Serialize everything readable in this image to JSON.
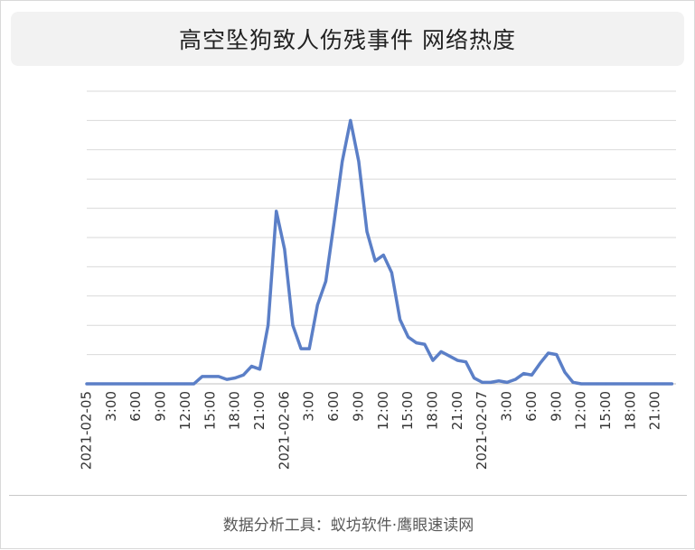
{
  "title": "高空坠狗致人伤残事件 网络热度",
  "footer": "数据分析工具：蚁坊软件·鹰眼速读网",
  "chart_data": {
    "type": "line",
    "title": "高空坠狗致人伤残事件 网络热度",
    "xlabel": "",
    "ylabel": "",
    "x_tick_labels": [
      "2021-02-05",
      "3:00",
      "6:00",
      "9:00",
      "12:00",
      "15:00",
      "18:00",
      "21:00",
      "2021-02-06",
      "3:00",
      "6:00",
      "9:00",
      "12:00",
      "15:00",
      "18:00",
      "21:00",
      "2021-02-07",
      "3:00",
      "6:00",
      "9:00",
      "12:00",
      "15:00",
      "18:00",
      "21:00"
    ],
    "x_tick_hours": [
      0,
      3,
      6,
      9,
      12,
      15,
      18,
      21,
      24,
      27,
      30,
      33,
      36,
      39,
      42,
      45,
      48,
      51,
      54,
      57,
      60,
      63,
      66,
      69
    ],
    "ylim": [
      0,
      10
    ],
    "y_gridlines": 10,
    "y_axis_labels_shown": false,
    "grid": true,
    "legend": "none",
    "line_color": "#5b7fc7",
    "series": [
      {
        "values": [
          [
            0,
            0
          ],
          [
            1,
            0
          ],
          [
            2,
            0
          ],
          [
            3,
            0
          ],
          [
            4,
            0
          ],
          [
            5,
            0
          ],
          [
            6,
            0
          ],
          [
            7,
            0
          ],
          [
            8,
            0
          ],
          [
            9,
            0
          ],
          [
            10,
            0
          ],
          [
            11,
            0
          ],
          [
            12,
            0
          ],
          [
            13,
            0
          ],
          [
            14,
            0.25
          ],
          [
            15,
            0.25
          ],
          [
            16,
            0.25
          ],
          [
            17,
            0.15
          ],
          [
            18,
            0.2
          ],
          [
            19,
            0.3
          ],
          [
            20,
            0.6
          ],
          [
            21,
            0.5
          ],
          [
            22,
            2
          ],
          [
            23,
            5.9
          ],
          [
            24,
            4.6
          ],
          [
            25,
            2
          ],
          [
            26,
            1.2
          ],
          [
            27,
            1.2
          ],
          [
            28,
            2.7
          ],
          [
            29,
            3.5
          ],
          [
            30,
            5.5
          ],
          [
            31,
            7.6
          ],
          [
            32,
            9
          ],
          [
            33,
            7.6
          ],
          [
            34,
            5.2
          ],
          [
            35,
            4.2
          ],
          [
            36,
            4.4
          ],
          [
            37,
            3.8
          ],
          [
            38,
            2.2
          ],
          [
            39,
            1.6
          ],
          [
            40,
            1.4
          ],
          [
            41,
            1.35
          ],
          [
            42,
            0.8
          ],
          [
            43,
            1.1
          ],
          [
            44,
            0.95
          ],
          [
            45,
            0.8
          ],
          [
            46,
            0.75
          ],
          [
            47,
            0.2
          ],
          [
            48,
            0.05
          ],
          [
            49,
            0.05
          ],
          [
            50,
            0.1
          ],
          [
            51,
            0.05
          ],
          [
            52,
            0.15
          ],
          [
            53,
            0.35
          ],
          [
            54,
            0.3
          ],
          [
            55,
            0.7
          ],
          [
            56,
            1.05
          ],
          [
            57,
            1
          ],
          [
            58,
            0.4
          ],
          [
            59,
            0.05
          ],
          [
            60,
            0
          ],
          [
            61,
            0
          ],
          [
            62,
            0
          ],
          [
            63,
            0
          ],
          [
            64,
            0
          ],
          [
            65,
            0
          ],
          [
            66,
            0
          ],
          [
            67,
            0
          ],
          [
            68,
            0
          ],
          [
            69,
            0
          ],
          [
            70,
            0
          ],
          [
            71,
            0
          ]
        ]
      }
    ]
  }
}
